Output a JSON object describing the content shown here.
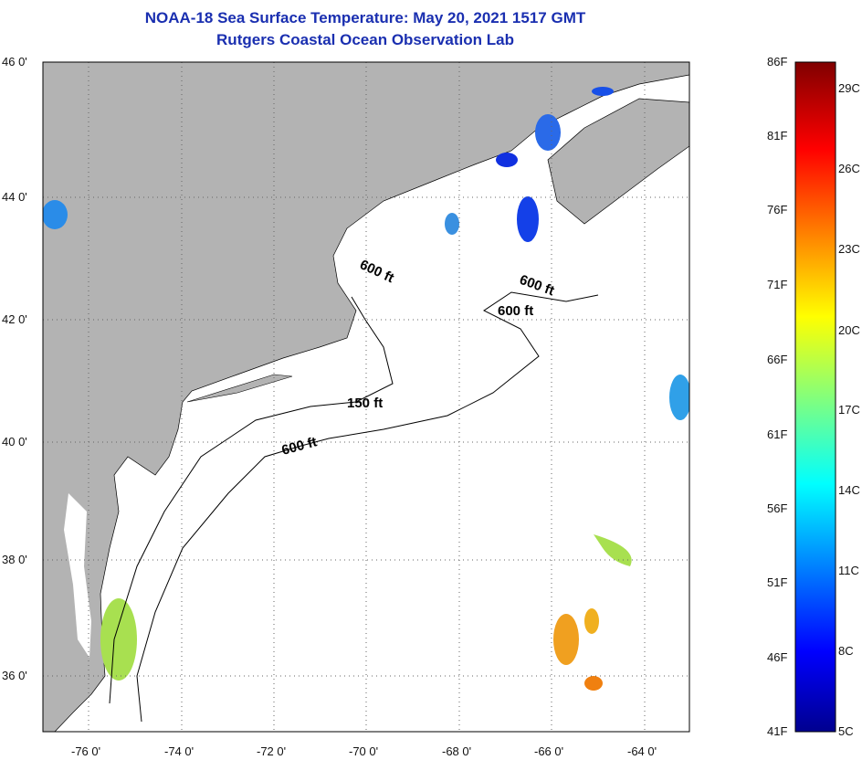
{
  "title": {
    "line1": "NOAA-18 Sea Surface Temperature:  May 20, 2021 1517 GMT",
    "line2": "Rutgers Coastal Ocean Observation Lab"
  },
  "axes": {
    "lon_labels": [
      "-76 0'",
      "-74 0'",
      "-72 0'",
      "-70 0'",
      "-68 0'",
      "-66 0'",
      "-64 0'"
    ],
    "lat_labels": [
      "46 0'",
      "44 0'",
      "42 0'",
      "40 0'",
      "38 0'",
      "36 0'"
    ]
  },
  "contours": [
    "600 ft",
    "600 ft",
    "600 ft",
    "150 ft",
    "600 ft"
  ],
  "colorbar": {
    "f_labels": [
      "86F",
      "81F",
      "76F",
      "71F",
      "66F",
      "61F",
      "56F",
      "51F",
      "46F",
      "41F"
    ],
    "c_labels": [
      "29C",
      "26C",
      "23C",
      "20C",
      "17C",
      "14C",
      "11C",
      "8C",
      "5C"
    ]
  },
  "colors": {
    "land": "#b3b3b3",
    "title": "#1a2fb0"
  }
}
